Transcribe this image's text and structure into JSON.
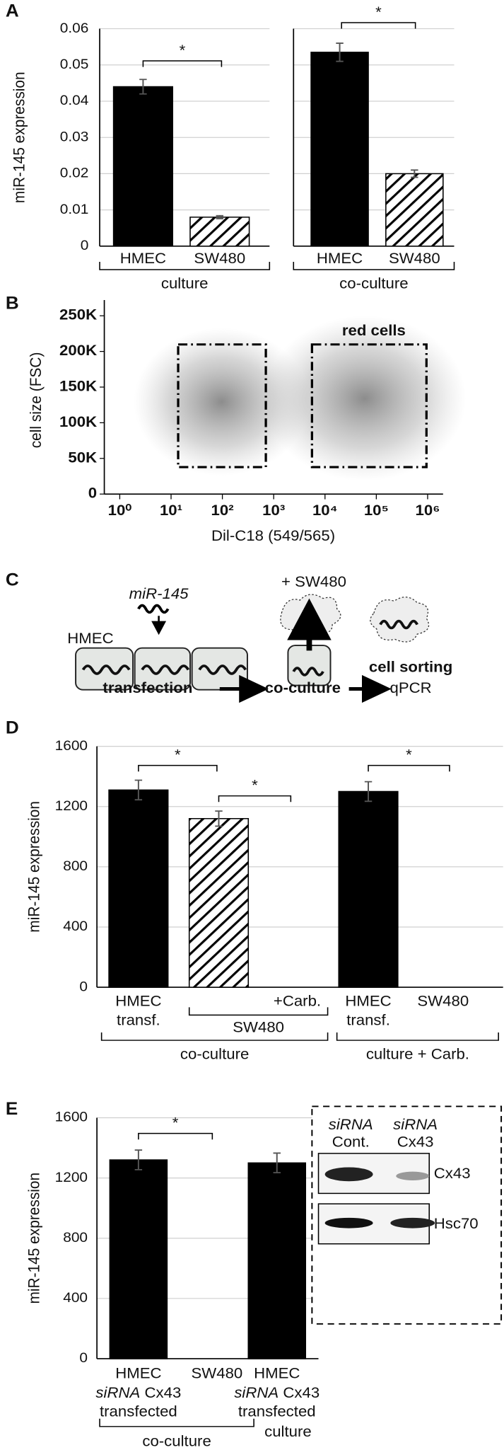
{
  "chart_data": [
    {
      "type": "bar",
      "panel_label": "A",
      "ylabel": "miR-145 expression",
      "categories": [
        "HMEC",
        "SW480"
      ],
      "values": [
        0.044,
        0.008
      ],
      "errors": [
        0.002,
        0.0004
      ],
      "patterns": [
        "solid",
        "hatch"
      ],
      "color": "#000000",
      "ylim": [
        0,
        0.06
      ],
      "yticks": [
        0,
        0.01,
        0.02,
        0.03,
        0.04,
        0.05,
        0.06
      ],
      "grid": true,
      "groups": [
        "culture"
      ],
      "annotations": [
        "*"
      ]
    },
    {
      "type": "bar",
      "categories": [
        "HMEC",
        "SW480"
      ],
      "values": [
        0.0535,
        0.02
      ],
      "errors": [
        0.0025,
        0.001
      ],
      "patterns": [
        "solid",
        "hatch"
      ],
      "color": "#000000",
      "ylim": [
        0,
        0.06
      ],
      "yticks": [
        0,
        0.01,
        0.02,
        0.03,
        0.04,
        0.05,
        0.06
      ],
      "ytick_labels": false,
      "grid": true,
      "groups": [
        "co-culture"
      ],
      "annotations": [
        "*"
      ]
    },
    {
      "type": "scatter",
      "panel_label": "B",
      "xlabel": "Dil-C18 (549/565)",
      "ylabel": "cell size (FSC)",
      "xlog": true,
      "xlim": [
        0.5,
        2000000
      ],
      "xticks": [
        {
          "value": 1,
          "label": "10⁰"
        },
        {
          "value": 10,
          "label": "10¹"
        },
        {
          "value": 100,
          "label": "10²"
        },
        {
          "value": 1000,
          "label": "10³"
        },
        {
          "value": 10000,
          "label": "10⁴"
        },
        {
          "value": 100000,
          "label": "10⁵"
        },
        {
          "value": 1000000,
          "label": "10⁶"
        }
      ],
      "ylim": [
        0,
        272000
      ],
      "yticks": [
        0,
        {
          "value": 50000,
          "label": "50K"
        },
        {
          "value": 100000,
          "label": "100K"
        },
        {
          "value": 150000,
          "label": "150K"
        },
        {
          "value": 200000,
          "label": "200K"
        },
        {
          "value": 250000,
          "label": "250K"
        }
      ],
      "annotations": [
        "red cells"
      ]
    },
    {
      "type": "bar",
      "panel_label": "D",
      "ylabel": "miR-145 expression",
      "categories": [
        [
          "HMEC",
          "transf."
        ],
        null,
        "+Carb.",
        [
          "HMEC",
          "transf."
        ],
        "SW480"
      ],
      "values": [
        1310,
        1120,
        0,
        1300,
        0
      ],
      "errors": [
        65,
        50,
        null,
        65,
        null
      ],
      "patterns": [
        "solid",
        "hatch",
        "solid",
        "solid",
        "solid"
      ],
      "color": "#000000",
      "ylim": [
        0,
        1600
      ],
      "yticks": [
        0,
        400,
        800,
        1200,
        1600
      ],
      "grid": true,
      "subgroups": [
        "SW480"
      ],
      "groups": [
        "co-culture",
        "culture + Carb."
      ],
      "annotations": [
        "*",
        "*",
        "*"
      ]
    },
    {
      "type": "bar",
      "panel_label": "E",
      "ylabel": "miR-145 expression",
      "categories": [
        [
          "HMEC",
          [
            "siRNA",
            "Cx43"
          ],
          "transfected"
        ],
        "SW480",
        [
          "HMEC",
          [
            "siRNA",
            "Cx43"
          ],
          "transfected"
        ]
      ],
      "values": [
        1320,
        0,
        1300
      ],
      "errors": [
        65,
        null,
        65
      ],
      "patterns": [
        "solid",
        "solid",
        "solid"
      ],
      "color": "#000000",
      "ylim": [
        0,
        1600
      ],
      "yticks": [
        0,
        400,
        800,
        1200,
        1600
      ],
      "grid": true,
      "groups": [
        "co-culture",
        "culture"
      ],
      "annotations": [
        "*"
      ],
      "inset": {
        "lanes": [
          [
            "siRNA",
            "Cont."
          ],
          [
            "siRNA",
            "Cx43"
          ]
        ],
        "proteins": [
          "Cx43",
          "Hsc70"
        ]
      }
    }
  ],
  "diagram": {
    "panel_label": "C",
    "mirna": "miR-145",
    "cell": "HMEC",
    "added": "+ SW480",
    "sorting": "cell sorting",
    "steps": [
      "transfection",
      "co-culture",
      "qPCR"
    ]
  }
}
